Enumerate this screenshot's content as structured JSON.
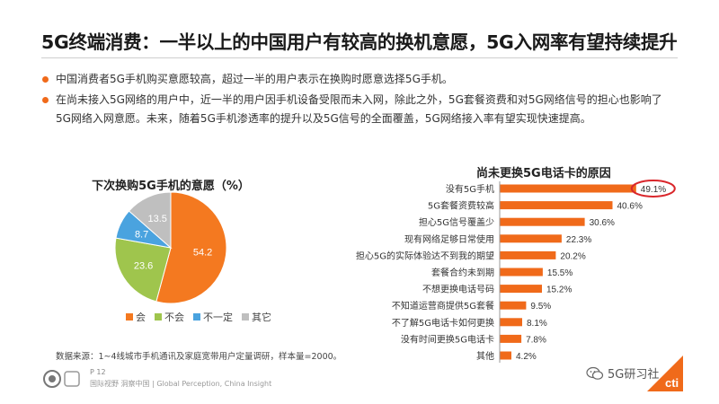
{
  "slide": {
    "title": "5G终端消费：一半以上的中国用户有较高的换机意愿，5G入网率有望持续提升",
    "bullets": [
      "中国消费者5G手机购买意愿较高，超过一半的用户表示在换购时愿意选择5G手机。",
      "在尚未接入5G网络的用户中，近一半的用户因手机设备受限而未入网，除此之外，5G套餐资费和对5G网络信号的担心也影响了5G网络入网意愿。未来，随着5G手机渗透率的提升以及5G信号的全面覆盖，5G网络接入率有望实现快速提高。"
    ],
    "source": "数据来源：1~4线城市手机通讯及家庭宽带用户定量调研，样本量=2000。",
    "page_number": "P 12",
    "footer": "国际视野  洞察中国 | Global Perception, China Insight",
    "watermark": "5G研习社",
    "corner_logo_text": "cti"
  },
  "colors": {
    "accent": "#f06a1a",
    "pie": [
      "#f47920",
      "#9fc54d",
      "#4aa3df",
      "#bfbfbf"
    ],
    "highlight_circle": "#d9262b"
  },
  "chart_data": [
    {
      "type": "pie",
      "title": "下次换购5G手机的意愿（%）",
      "categories": [
        "会",
        "不会",
        "不一定",
        "其它"
      ],
      "values": [
        54.2,
        23.6,
        8.7,
        13.5
      ],
      "labels": [
        "54.2",
        "23.6",
        "8.7",
        "13.5"
      ],
      "legend": "bottom"
    },
    {
      "type": "bar",
      "orientation": "horizontal",
      "title": "尚未更换5G电话卡的原因",
      "categories": [
        "没有5G手机",
        "5G套餐资费较高",
        "担心5G信号覆盖少",
        "现有网络足够日常使用",
        "担心5G的实际体验达不到我的期望",
        "套餐合约未到期",
        "不想更换电话号码",
        "不知道运营商提供5G套餐",
        "不了解5G电话卡如何更换",
        "没有时间更换5G电话卡",
        "其他"
      ],
      "values": [
        49.1,
        40.6,
        30.6,
        22.3,
        20.2,
        15.5,
        15.2,
        9.5,
        8.1,
        7.8,
        4.2
      ],
      "labels": [
        "49.1%",
        "40.6%",
        "30.6%",
        "22.3%",
        "20.2%",
        "15.5%",
        "15.2%",
        "9.5%",
        "8.1%",
        "7.8%",
        "4.2%"
      ],
      "highlight_index": 0,
      "xlim": [
        0,
        55
      ],
      "grid": false
    }
  ]
}
